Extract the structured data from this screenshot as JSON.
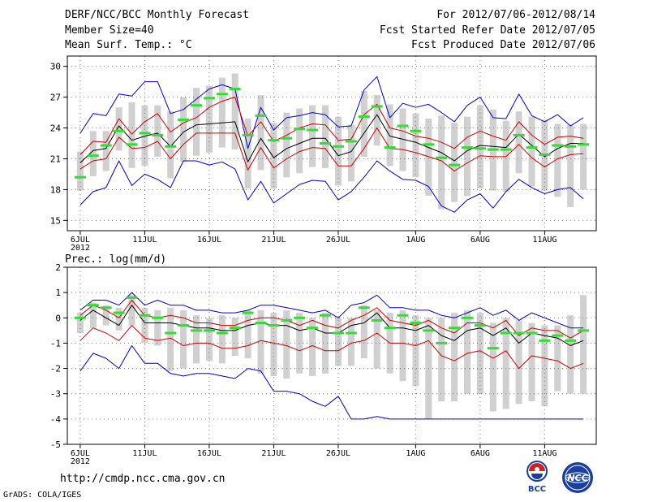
{
  "header": {
    "title": "DERF/NCC/BCC Monthly Forecast",
    "member_size": "Member Size=40",
    "variable": "Mean Surf. Temp.: °C",
    "forecast_period": "For 2012/07/06-2012/08/14",
    "fcst_started": "Fcst Started Refer Date 2012/07/05",
    "fcst_produced": "Fcst Produced Date 2012/07/06"
  },
  "footer": {
    "url": "http://cmdp.ncc.cma.gov.cn",
    "grads": "GrADS: COLA/IGES",
    "logo_bcc": "BCC",
    "logo_ncc": "NCC"
  },
  "colors": {
    "envelope": "#0000cc",
    "spread": "#cc0000",
    "mean": "#000000",
    "bars": "#d0d0d0",
    "marker": "#33dd33",
    "grid": "#777777"
  },
  "chart_data": [
    {
      "type": "line",
      "title": "Mean Surf. Temp.: °C",
      "xlabel": "",
      "ylabel": "°C",
      "ylim": [
        14,
        31
      ],
      "yticks": [
        15,
        18,
        21,
        24,
        27,
        30
      ],
      "grid": true,
      "x_ticks": [
        {
          "day": 1,
          "label": "6JUL",
          "sub": "2012"
        },
        {
          "day": 6,
          "label": "11JUL"
        },
        {
          "day": 11,
          "label": "16JUL"
        },
        {
          "day": 16,
          "label": "21JUL"
        },
        {
          "day": 21,
          "label": "26JUL"
        },
        {
          "day": 27,
          "label": "1AUG"
        },
        {
          "day": 32,
          "label": "6AUG"
        },
        {
          "day": 37,
          "label": "11AUG"
        }
      ],
      "days": 40,
      "series": [
        {
          "name": "max",
          "values": [
            23.5,
            25.4,
            25.2,
            27.3,
            27.1,
            28.5,
            28.5,
            25.4,
            25.8,
            26.8,
            27.8,
            28.2,
            27.8,
            22.0,
            26.0,
            23.8,
            25.0,
            25.2,
            25.5,
            25.3,
            24.1,
            24.2,
            27.7,
            29.0,
            25.0,
            26.4,
            26.0,
            26.3,
            25.5,
            24.6,
            26.2,
            27.0,
            25.0,
            24.9,
            27.3,
            25.2,
            24.6,
            25.3,
            24.2,
            25.0
          ]
        },
        {
          "name": "upper",
          "values": [
            21.4,
            22.7,
            22.6,
            24.9,
            23.4,
            24.6,
            25.4,
            23.6,
            24.5,
            25.0,
            26.0,
            26.6,
            27.0,
            23.2,
            24.6,
            22.7,
            23.3,
            24.0,
            24.4,
            24.3,
            22.8,
            22.9,
            25.3,
            26.3,
            24.0,
            23.7,
            23.2,
            23.0,
            22.6,
            22.0,
            23.1,
            23.7,
            23.2,
            22.8,
            24.6,
            23.3,
            22.4,
            23.1,
            23.2,
            23.0
          ]
        },
        {
          "name": "mean",
          "values": [
            20.6,
            21.8,
            22.0,
            24.2,
            22.8,
            23.2,
            23.5,
            22.2,
            23.6,
            24.3,
            24.4,
            24.5,
            24.6,
            20.7,
            23.0,
            21.1,
            22.0,
            22.5,
            23.0,
            23.0,
            21.3,
            21.7,
            23.5,
            25.3,
            23.2,
            22.9,
            22.6,
            22.1,
            21.6,
            20.8,
            21.8,
            22.3,
            22.2,
            22.1,
            23.4,
            22.3,
            21.2,
            22.0,
            22.5,
            22.5
          ]
        },
        {
          "name": "lower",
          "values": [
            20.0,
            20.8,
            21.0,
            23.1,
            22.0,
            22.1,
            22.7,
            21.0,
            22.4,
            23.5,
            23.5,
            23.5,
            23.5,
            19.9,
            22.1,
            20.1,
            21.0,
            21.7,
            22.1,
            22.0,
            20.3,
            20.3,
            22.0,
            24.0,
            22.0,
            21.9,
            21.6,
            21.2,
            20.8,
            19.8,
            20.6,
            21.3,
            21.2,
            21.2,
            22.4,
            21.1,
            20.2,
            21.0,
            21.4,
            21.5
          ]
        },
        {
          "name": "min",
          "values": [
            16.5,
            17.8,
            18.2,
            20.8,
            18.4,
            19.5,
            19.0,
            18.2,
            20.8,
            20.8,
            20.4,
            20.7,
            20.0,
            17.0,
            18.8,
            16.7,
            17.6,
            18.5,
            18.9,
            18.8,
            17.0,
            17.8,
            19.2,
            20.8,
            19.8,
            19.0,
            18.9,
            18.3,
            16.4,
            15.8,
            17.0,
            17.6,
            16.2,
            17.8,
            19.0,
            18.2,
            17.6,
            18.0,
            18.2,
            17.1
          ]
        },
        {
          "name": "ensemble",
          "values": [
            19.2,
            21.3,
            22.3,
            23.7,
            22.4,
            23.5,
            23.3,
            22.2,
            24.8,
            26.2,
            26.9,
            27.3,
            27.8,
            23.3,
            25.2,
            22.8,
            23.0,
            23.9,
            23.8,
            22.5,
            22.2,
            22.7,
            25.1,
            26.1,
            22.1,
            24.2,
            23.7,
            22.4,
            21.1,
            20.4,
            22.1,
            22.0,
            21.9,
            21.9,
            23.3,
            22.1,
            21.4,
            22.3,
            22.2,
            22.4
          ]
        }
      ],
      "range_bars": [
        [
          17.9,
          21.7
        ],
        [
          19.3,
          23.7
        ],
        [
          19.8,
          23.7
        ],
        [
          21.8,
          26.0
        ],
        [
          20.1,
          26.5
        ],
        [
          20.3,
          26.2
        ],
        [
          21.2,
          26.2
        ],
        [
          19.1,
          25.6
        ],
        [
          20.7,
          27.0
        ],
        [
          21.3,
          27.9
        ],
        [
          21.6,
          28.1
        ],
        [
          22.1,
          28.9
        ],
        [
          21.9,
          29.3
        ],
        [
          18.1,
          24.9
        ],
        [
          19.9,
          27.2
        ],
        [
          18.1,
          24.5
        ],
        [
          19.2,
          25.5
        ],
        [
          19.6,
          25.9
        ],
        [
          20.2,
          26.2
        ],
        [
          20.1,
          26.2
        ],
        [
          18.4,
          25.1
        ],
        [
          18.8,
          24.3
        ],
        [
          21.2,
          27.6
        ],
        [
          22.3,
          27.2
        ],
        [
          20.3,
          26.3
        ],
        [
          19.8,
          25.9
        ],
        [
          19.2,
          25.4
        ],
        [
          17.4,
          24.9
        ],
        [
          16.1,
          25.2
        ],
        [
          16.8,
          24.5
        ],
        [
          17.4,
          25.1
        ],
        [
          18.1,
          26.2
        ],
        [
          17.9,
          25.8
        ],
        [
          17.8,
          24.7
        ],
        [
          19.6,
          25.6
        ],
        [
          18.3,
          25.1
        ],
        [
          17.9,
          24.8
        ],
        [
          17.3,
          24.4
        ],
        [
          16.3,
          24.3
        ],
        [
          18.0,
          24.4
        ]
      ]
    },
    {
      "type": "line",
      "title": "Prec.: log(mm/d)",
      "xlabel": "",
      "ylabel": "log(mm/d)",
      "ylim": [
        -5,
        2
      ],
      "yticks": [
        -5,
        -4,
        -3,
        -2,
        -1,
        0,
        1,
        2
      ],
      "grid": true,
      "x_ticks": [
        {
          "day": 1,
          "label": "6JUL",
          "sub": "2012"
        },
        {
          "day": 6,
          "label": "11JUL"
        },
        {
          "day": 11,
          "label": "16JUL"
        },
        {
          "day": 16,
          "label": "21JUL"
        },
        {
          "day": 21,
          "label": "26JUL"
        },
        {
          "day": 27,
          "label": "1AUG"
        },
        {
          "day": 32,
          "label": "6AUG"
        },
        {
          "day": 37,
          "label": "11AUG"
        }
      ],
      "days": 40,
      "series": [
        {
          "name": "max",
          "values": [
            0.3,
            0.7,
            0.7,
            0.5,
            1.0,
            0.5,
            0.7,
            0.5,
            0.5,
            0.3,
            0.3,
            0.2,
            0.2,
            0.3,
            0.5,
            0.5,
            0.4,
            0.3,
            0.2,
            0.3,
            0.0,
            0.5,
            0.6,
            0.9,
            0.4,
            0.4,
            0.3,
            0.3,
            0.1,
            0.0,
            0.2,
            0.4,
            0.1,
            0.3,
            -0.1,
            0.2,
            0.0,
            -0.2,
            -0.4,
            -0.4
          ]
        },
        {
          "name": "upper",
          "values": [
            0.1,
            0.5,
            0.3,
            0.0,
            0.7,
            0.1,
            0.0,
            0.1,
            0.0,
            -0.2,
            -0.2,
            -0.3,
            -0.3,
            -0.1,
            0.0,
            0.0,
            -0.1,
            -0.3,
            -0.1,
            -0.3,
            -0.4,
            -0.1,
            0.1,
            0.4,
            -0.1,
            -0.2,
            -0.3,
            -0.1,
            -0.4,
            -0.6,
            -0.2,
            -0.2,
            -0.4,
            -0.1,
            -0.7,
            -0.4,
            -0.5,
            -0.5,
            -0.8,
            -0.5
          ]
        },
        {
          "name": "mean",
          "values": [
            -0.1,
            0.3,
            0.0,
            -0.3,
            0.5,
            -0.2,
            -0.2,
            -0.2,
            -0.3,
            -0.4,
            -0.4,
            -0.5,
            -0.5,
            -0.3,
            -0.2,
            -0.3,
            -0.3,
            -0.5,
            -0.4,
            -0.6,
            -0.6,
            -0.3,
            -0.2,
            0.2,
            -0.4,
            -0.4,
            -0.5,
            -0.3,
            -0.7,
            -0.9,
            -0.5,
            -0.4,
            -0.7,
            -0.4,
            -1.0,
            -0.6,
            -0.7,
            -0.8,
            -1.1,
            -0.9
          ]
        },
        {
          "name": "lower",
          "values": [
            -0.9,
            -0.4,
            -0.6,
            -0.9,
            -0.3,
            -0.8,
            -0.9,
            -0.8,
            -1.1,
            -1.0,
            -1.0,
            -1.2,
            -1.2,
            -1.1,
            -0.9,
            -1.0,
            -1.1,
            -1.3,
            -1.1,
            -1.3,
            -1.3,
            -1.0,
            -0.9,
            -0.6,
            -1.0,
            -1.0,
            -1.1,
            -0.9,
            -1.5,
            -1.7,
            -1.4,
            -1.3,
            -1.6,
            -1.3,
            -2.0,
            -1.5,
            -1.6,
            -1.7,
            -2.0,
            -1.8
          ]
        },
        {
          "name": "min",
          "values": [
            -2.1,
            -1.4,
            -1.6,
            -2.0,
            -1.1,
            -1.8,
            -1.8,
            -2.2,
            -2.3,
            -2.2,
            -2.2,
            -2.3,
            -2.4,
            -2.0,
            -2.1,
            -2.9,
            -2.9,
            -3.0,
            -3.3,
            -3.5,
            -3.1,
            -4.0,
            -4.0,
            -3.9,
            -4.0,
            -4.0,
            -4.0,
            -4.0,
            -4.0,
            -4.0,
            -4.0,
            -4.0,
            -4.0,
            -4.0,
            -4.0,
            -4.0,
            -4.0,
            -4.0,
            -4.0,
            -4.0
          ]
        },
        {
          "name": "ensemble",
          "values": [
            0.0,
            0.5,
            0.4,
            0.2,
            0.8,
            0.1,
            0.0,
            -0.6,
            -0.3,
            -0.5,
            -0.5,
            -0.6,
            -0.4,
            0.2,
            -0.2,
            -0.3,
            -0.1,
            0.0,
            -0.4,
            0.1,
            -0.6,
            -0.6,
            0.4,
            -0.1,
            -0.4,
            0.1,
            -0.2,
            -0.5,
            -1.0,
            -0.4,
            0.0,
            -0.3,
            -1.2,
            -0.6,
            -0.6,
            -0.6,
            -0.9,
            -0.7,
            -0.9,
            -0.5
          ]
        }
      ],
      "range_bars": [
        [
          -0.6,
          0.2
        ],
        [
          -0.4,
          0.6
        ],
        [
          -0.3,
          0.5
        ],
        [
          -0.5,
          0.4
        ],
        [
          -0.3,
          0.9
        ],
        [
          -1.0,
          0.4
        ],
        [
          -1.1,
          0.3
        ],
        [
          -2.1,
          0.4
        ],
        [
          -2.0,
          0.3
        ],
        [
          -1.8,
          0.1
        ],
        [
          -1.7,
          0.0
        ],
        [
          -1.8,
          0.1
        ],
        [
          -1.5,
          0.0
        ],
        [
          -1.6,
          0.3
        ],
        [
          -2.2,
          0.3
        ],
        [
          -2.3,
          0.2
        ],
        [
          -2.4,
          0.3
        ],
        [
          -2.2,
          0.2
        ],
        [
          -2.3,
          0.0
        ],
        [
          -2.2,
          0.2
        ],
        [
          -1.9,
          0.0
        ],
        [
          -1.9,
          0.0
        ],
        [
          -1.6,
          0.5
        ],
        [
          -2.0,
          0.3
        ],
        [
          -2.2,
          0.2
        ],
        [
          -2.5,
          0.3
        ],
        [
          -2.7,
          0.1
        ],
        [
          -4.0,
          0.0
        ],
        [
          -3.3,
          0.0
        ],
        [
          -3.3,
          0.2
        ],
        [
          -3.0,
          0.3
        ],
        [
          -3.0,
          0.2
        ],
        [
          -3.7,
          -0.2
        ],
        [
          -3.6,
          0.0
        ],
        [
          -3.4,
          -0.1
        ],
        [
          -3.3,
          -0.2
        ],
        [
          -3.5,
          -0.3
        ],
        [
          -2.9,
          -0.3
        ],
        [
          -3.0,
          0.1
        ],
        [
          -3.0,
          0.9
        ]
      ]
    }
  ]
}
